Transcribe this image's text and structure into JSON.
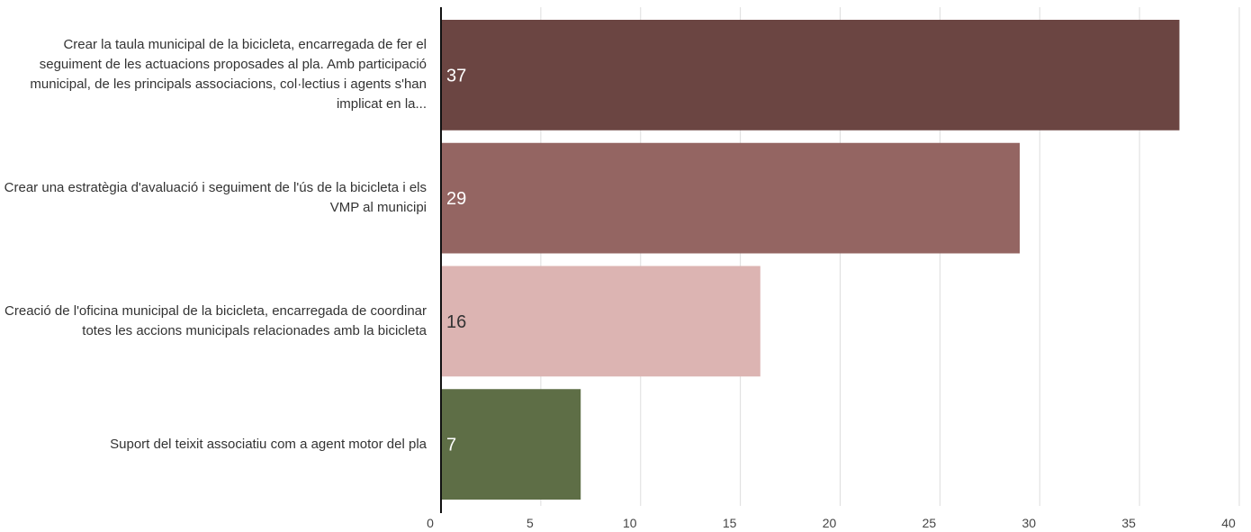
{
  "chart_data": {
    "type": "barh",
    "categories": [
      "Crear la taula municipal de la bicicleta, encarregada de fer el seguiment de les actuacions proposades al pla. Amb participació municipal, de les principals associacions, col·lectius i agents s'han implicat en la...",
      "Crear una estratègia d'avaluació i seguiment de l'ús de la bicicleta i els VMP al municipi",
      "Creació de l'oficina municipal de la bicicleta, encarregada de coordinar totes les accions municipals relacionades amb la bicicleta",
      "Suport del teixit associatiu com a agent motor del pla"
    ],
    "values": [
      37,
      29,
      16,
      7
    ],
    "colors": [
      "#6b4542",
      "#946562",
      "#dcb4b2",
      "#5e6e46"
    ],
    "xlim": [
      0,
      40
    ],
    "xticks": [
      0,
      5,
      10,
      15,
      20,
      25,
      30,
      35,
      40
    ],
    "grid": true
  }
}
